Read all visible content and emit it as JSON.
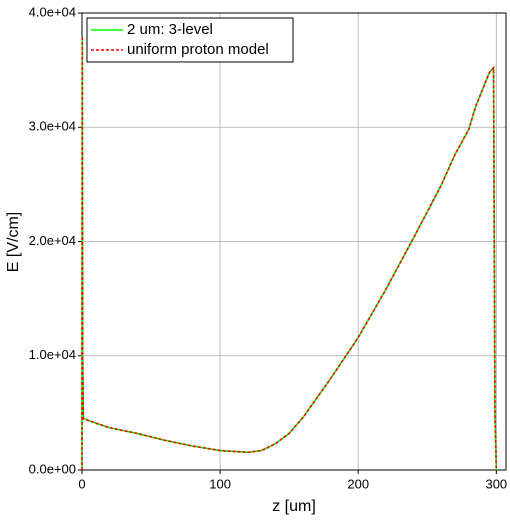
{
  "chart_data": {
    "type": "line",
    "xlabel": "z [um]",
    "ylabel": "E [V/cm]",
    "x": [
      0,
      0.2,
      0.5,
      1,
      10,
      20,
      40,
      60,
      80,
      100,
      120,
      130,
      140,
      150,
      160,
      180,
      200,
      220,
      240,
      260,
      270,
      280,
      285,
      290,
      295,
      298,
      299,
      300
    ],
    "series": [
      {
        "name": "2 um: 3-level",
        "color": "#00ff00",
        "dashed": false,
        "values": [
          0,
          38000,
          10000,
          4500,
          4100,
          3700,
          3200,
          2600,
          2100,
          1700,
          1550,
          1700,
          2300,
          3200,
          4600,
          8000,
          11600,
          15800,
          20300,
          24900,
          27600,
          29800,
          31800,
          33300,
          34800,
          35200,
          5000,
          0
        ]
      },
      {
        "name": "uniform proton model",
        "color": "#ff0000",
        "dashed": true,
        "values": [
          0,
          38000,
          10000,
          4500,
          4100,
          3700,
          3200,
          2600,
          2100,
          1700,
          1550,
          1700,
          2300,
          3200,
          4600,
          8000,
          11600,
          15800,
          20300,
          24900,
          27600,
          29800,
          31800,
          33300,
          34800,
          35200,
          5000,
          0
        ]
      }
    ],
    "xlim": [
      0,
      307
    ],
    "ylim": [
      0,
      40000
    ],
    "xticks": [
      0,
      100,
      200,
      300
    ],
    "yticks": [
      {
        "value": 0,
        "label": "0.0e+00"
      },
      {
        "value": 10000,
        "label": "1.0e+04"
      },
      {
        "value": 20000,
        "label": "2.0e+04"
      },
      {
        "value": 30000,
        "label": "3.0e+04"
      },
      {
        "value": 40000,
        "label": "4.0e+04"
      }
    ],
    "grid": true,
    "legend": "upper left"
  }
}
